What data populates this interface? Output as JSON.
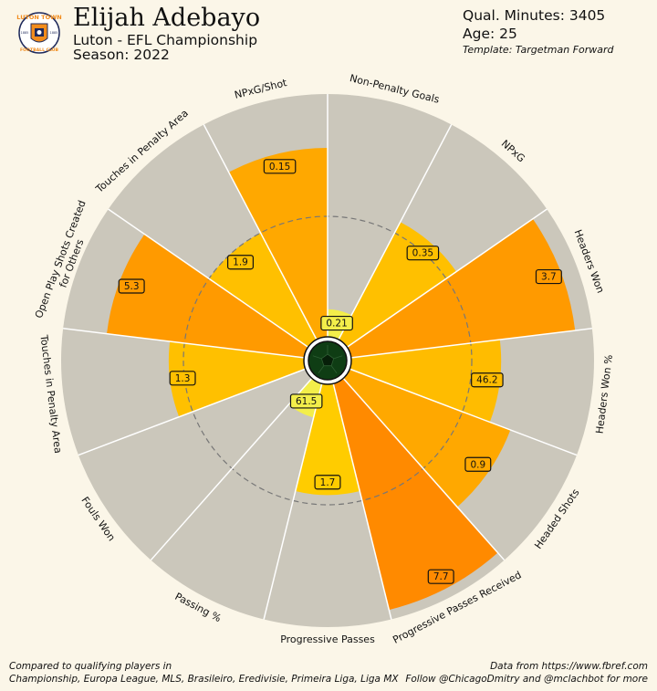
{
  "header": {
    "player_name": "Elijah Adebayo",
    "league_line": "Luton - EFL Championship",
    "season_line": "Season: 2022",
    "minutes_line": "Qual. Minutes: 3405",
    "age_line": "Age: 25",
    "template_line": "Template: Targetman Forward"
  },
  "badge": {
    "top_text": "LUTON TOWN",
    "bottom_text": "FOOTBALL CLUB",
    "year_left": "1885",
    "year_right": "1885",
    "colors": {
      "orange": "#f28c1c",
      "navy": "#1f2a5c",
      "white": "#ffffff"
    }
  },
  "footer": {
    "left_1": "Compared to qualifying players in",
    "left_2": "Championship, Europa League, MLS, Brasileiro, Eredivisie, Primeira Liga, Liga MX",
    "right_1": "Data from https://www.fbref.com",
    "right_2": "Follow @ChicagoDmitry and @mclachbot for more"
  },
  "colors": {
    "background": "#fbf6e8",
    "slice_bg": "#cbc7bb",
    "divider": "#ffffff",
    "reference_ring": "#777777",
    "center_ball": "#0f3d14"
  },
  "chart_data": {
    "type": "pizza",
    "start": "top, clockwise",
    "reference_ring_percentile": 50,
    "metrics": [
      {
        "name": "Non-Penalty Goals",
        "value_label": "0.21",
        "percentile": 12,
        "color": "#f3ee4a"
      },
      {
        "name": "NPxG",
        "value_label": "0.35",
        "percentile": 55,
        "color": "#ffc000"
      },
      {
        "name": "Headers Won",
        "value_label": "3.7",
        "percentile": 93,
        "color": "#ff9a00"
      },
      {
        "name": "Headers Won %",
        "value_label": "46.2",
        "percentile": 62,
        "color": "#ffbc00"
      },
      {
        "name": "Headed Shots",
        "value_label": "0.9",
        "percentile": 71,
        "color": "#ffa800"
      },
      {
        "name": "Progressive Passes Received",
        "value_label": "7.7",
        "percentile": 96,
        "color": "#ff8a00"
      },
      {
        "name": "Progressive Passes",
        "value_label": "1.7",
        "percentile": 46,
        "color": "#ffcc00"
      },
      {
        "name": "Passing %",
        "value_label": "61.5",
        "percentile": 15,
        "color": "#f3ee4a"
      },
      {
        "name": "Fouls Won",
        "value_label": "",
        "percentile": 0,
        "color": "#f3ee4a"
      },
      {
        "name": "Touches in Penalty Area",
        "value_label": "1.3",
        "percentile": 56,
        "color": "#ffc000"
      },
      {
        "name": "Open Play Shots Created\nfor Others",
        "value_label": "5.3",
        "percentile": 82,
        "color": "#ff9a00"
      },
      {
        "name": "Touches in Penalty Area",
        "value_label": "1.9",
        "percentile": 50,
        "color": "#ffc000"
      },
      {
        "name": "NPxG/Shot",
        "value_label": "0.15",
        "percentile": 78,
        "color": "#ffa800"
      }
    ]
  }
}
